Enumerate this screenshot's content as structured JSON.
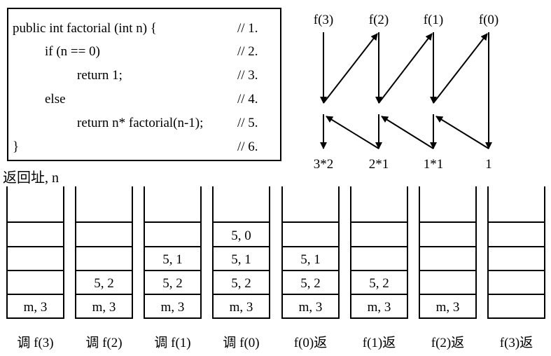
{
  "code": {
    "lines": [
      {
        "text": "public int factorial (int n) {",
        "comment": "// 1.",
        "indent": 0
      },
      {
        "text": "if (n == 0)",
        "comment": "// 2.",
        "indent": 1
      },
      {
        "text": "return 1;",
        "comment": "// 3.",
        "indent": 2
      },
      {
        "text": "else",
        "comment": "// 4.",
        "indent": 1
      },
      {
        "text": "return n* factorial(n-1);",
        "comment": "// 5.",
        "indent": 2
      },
      {
        "text": "}",
        "comment": "// 6.",
        "indent": 0
      }
    ]
  },
  "return_label": "返回址, n",
  "calls": {
    "top_labels": [
      "f(3)",
      "f(2)",
      "f(1)",
      "f(0)"
    ],
    "bottom_labels": [
      "3*2",
      "2*1",
      "1*1",
      "1"
    ]
  },
  "stacks": [
    {
      "caption": "调 f(3)",
      "slots": [
        "m, 3",
        "",
        "",
        "",
        ""
      ]
    },
    {
      "caption": "调 f(2)",
      "slots": [
        "m, 3",
        "5, 2",
        "",
        "",
        ""
      ]
    },
    {
      "caption": "调 f(1)",
      "slots": [
        "m, 3",
        "5, 2",
        "5, 1",
        "",
        ""
      ]
    },
    {
      "caption": "调 f(0)",
      "slots": [
        "m, 3",
        "5, 2",
        "5, 1",
        "5, 0",
        ""
      ]
    },
    {
      "caption": "f(0)返",
      "slots": [
        "m, 3",
        "5, 2",
        "5, 1",
        "",
        ""
      ]
    },
    {
      "caption": "f(1)返",
      "slots": [
        "m, 3",
        "5, 2",
        "",
        "",
        ""
      ]
    },
    {
      "caption": "f(2)返",
      "slots": [
        "m, 3",
        "",
        "",
        "",
        ""
      ]
    },
    {
      "caption": "f(3)返",
      "slots": [
        "",
        "",
        "",
        "",
        ""
      ]
    }
  ]
}
